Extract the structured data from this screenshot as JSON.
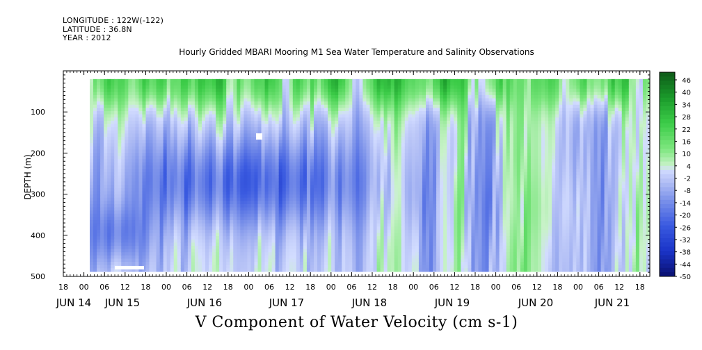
{
  "meta": {
    "longitude": "LONGITUDE : 122W(-122)",
    "latitude": "LATITUDE : 36.8N",
    "year": "YEAR : 2012"
  },
  "chart_data": {
    "type": "heatmap",
    "title": "Hourly Gridded MBARI Mooring M1 Sea Water Temperature and Salinity Observations",
    "caption": "V Component of Water Velocity (cm s-1)",
    "ylabel": "DEPTH (m)",
    "ylim": [
      500,
      0
    ],
    "yticks": [
      100,
      200,
      300,
      400,
      500
    ],
    "xrange_hours": [
      "JUN 14 18:00",
      "JUN 21 19:00"
    ],
    "hour_ticks": [
      "18",
      "00",
      "06",
      "12",
      "18",
      "00",
      "06",
      "12",
      "18",
      "00",
      "06",
      "12",
      "18",
      "00",
      "06",
      "12",
      "18",
      "00",
      "06",
      "12",
      "18",
      "00",
      "06",
      "12",
      "18",
      "00",
      "06",
      "12",
      "18",
      "00",
      "06",
      "12",
      "18"
    ],
    "date_labels": [
      "JUN 14",
      "JUN 15",
      "JUN 16",
      "JUN 17",
      "JUN 18",
      "JUN 19",
      "JUN 20",
      "JUN 21"
    ],
    "colorbar_levels": [
      "46",
      "40",
      "34",
      "28",
      "22",
      "16",
      "10",
      "4",
      "-2",
      "-8",
      "-14",
      "-20",
      "-26",
      "-32",
      "-38",
      "-44",
      "-50"
    ],
    "colorscale": {
      "min": -50,
      "max": 46,
      "low_color": "#0a1a70",
      "mid_color": "#d4dcff",
      "zero_color": "#ccf2cc",
      "high_color": "#1a5a1e"
    },
    "data_extent": {
      "start": "JUN 15 02:00",
      "end": "JUN 21 18:00",
      "depth_top": 20,
      "depth_bottom": 485
    },
    "pattern_notes": "Green (positive, northward) near surface and in episodic columns; blue (negative, southward) band 150-400 m on JUN 15-17; mixed thereafter",
    "grid": false
  }
}
